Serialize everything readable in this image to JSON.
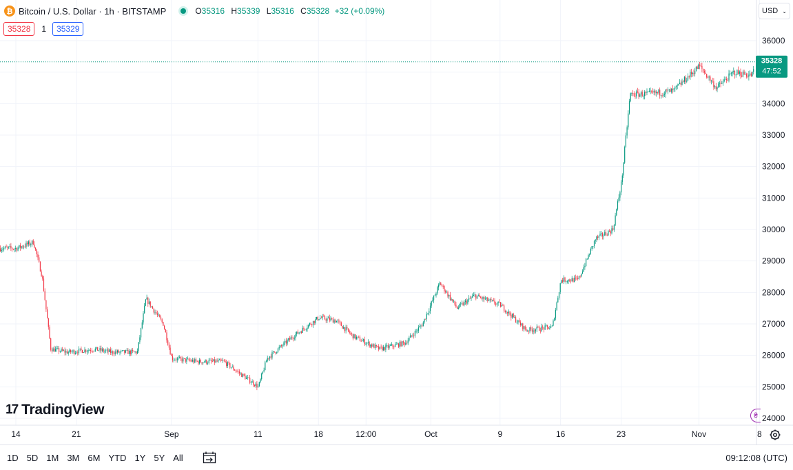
{
  "header": {
    "symbol_icon": "bitcoin-icon",
    "symbol_icon_glyph": "₿",
    "symbol_title": "Bitcoin / U.S. Dollar · 1h · BITSTAMP",
    "ohlc": {
      "open_label": "O",
      "open": "35316",
      "high_label": "H",
      "high": "35339",
      "low_label": "L",
      "low": "35316",
      "close_label": "C",
      "close": "35328",
      "change": "+32 (+0.09%)"
    },
    "bid": "35328",
    "spread": "1",
    "ask": "35329",
    "currency": "USD"
  },
  "branding": {
    "logo_mark": "17",
    "logo_text": "TradingView"
  },
  "footer": {
    "ranges": [
      "1D",
      "5D",
      "1M",
      "3M",
      "6M",
      "YTD",
      "1Y",
      "5Y",
      "All"
    ],
    "time": "09:12:08 (UTC)"
  },
  "colors": {
    "up": "#089981",
    "down": "#f23645",
    "grid": "#f0f3fa",
    "price_label_bg": "#089981"
  },
  "chart_data": {
    "type": "candlestick",
    "title": "",
    "ylim": [
      23800,
      36300
    ],
    "y_ticks": [
      24000,
      25000,
      26000,
      27000,
      28000,
      29000,
      30000,
      31000,
      32000,
      33000,
      34000,
      35000,
      36000
    ],
    "x_tick_labels": [
      "14",
      "21",
      "Sep",
      "11",
      "18",
      "12:00",
      "Oct",
      "9",
      "16",
      "23",
      "Nov",
      "8"
    ],
    "grid": true,
    "last_price": "35328",
    "countdown": "47:52",
    "price_path_approx": [
      {
        "date": "Aug 14",
        "close": 29400
      },
      {
        "date": "Aug 16",
        "close": 29600
      },
      {
        "date": "Aug 17",
        "close": 28500
      },
      {
        "date": "Aug 18",
        "close": 26200
      },
      {
        "date": "Aug 20",
        "close": 26100
      },
      {
        "date": "Aug 23",
        "close": 26200
      },
      {
        "date": "Aug 25",
        "close": 26100
      },
      {
        "date": "Aug 28",
        "close": 26100
      },
      {
        "date": "Aug 29",
        "close": 27800
      },
      {
        "date": "Aug 31",
        "close": 27000
      },
      {
        "date": "Sep 1",
        "close": 25900
      },
      {
        "date": "Sep 4",
        "close": 25800
      },
      {
        "date": "Sep 7",
        "close": 25800
      },
      {
        "date": "Sep 11",
        "close": 25000
      },
      {
        "date": "Sep 12",
        "close": 25900
      },
      {
        "date": "Sep 15",
        "close": 26600
      },
      {
        "date": "Sep 18",
        "close": 27200
      },
      {
        "date": "Sep 20",
        "close": 27100
      },
      {
        "date": "Sep 22",
        "close": 26600
      },
      {
        "date": "Sep 25",
        "close": 26200
      },
      {
        "date": "Sep 28",
        "close": 26400
      },
      {
        "date": "Sep 30",
        "close": 27000
      },
      {
        "date": "Oct 2",
        "close": 28300
      },
      {
        "date": "Oct 4",
        "close": 27500
      },
      {
        "date": "Oct 6",
        "close": 27900
      },
      {
        "date": "Oct 9",
        "close": 27600
      },
      {
        "date": "Oct 12",
        "close": 26800
      },
      {
        "date": "Oct 15",
        "close": 26900
      },
      {
        "date": "Oct 16",
        "close": 28400
      },
      {
        "date": "Oct 18",
        "close": 28400
      },
      {
        "date": "Oct 20",
        "close": 29700
      },
      {
        "date": "Oct 22",
        "close": 30000
      },
      {
        "date": "Oct 23",
        "close": 31500
      },
      {
        "date": "Oct 24",
        "close": 34300
      },
      {
        "date": "Oct 26",
        "close": 34300
      },
      {
        "date": "Oct 29",
        "close": 34400
      },
      {
        "date": "Nov 1",
        "close": 35200
      },
      {
        "date": "Nov 3",
        "close": 34500
      },
      {
        "date": "Nov 5",
        "close": 35000
      },
      {
        "date": "Nov 7",
        "close": 34900
      },
      {
        "date": "Nov 8",
        "close": 35328
      }
    ]
  }
}
